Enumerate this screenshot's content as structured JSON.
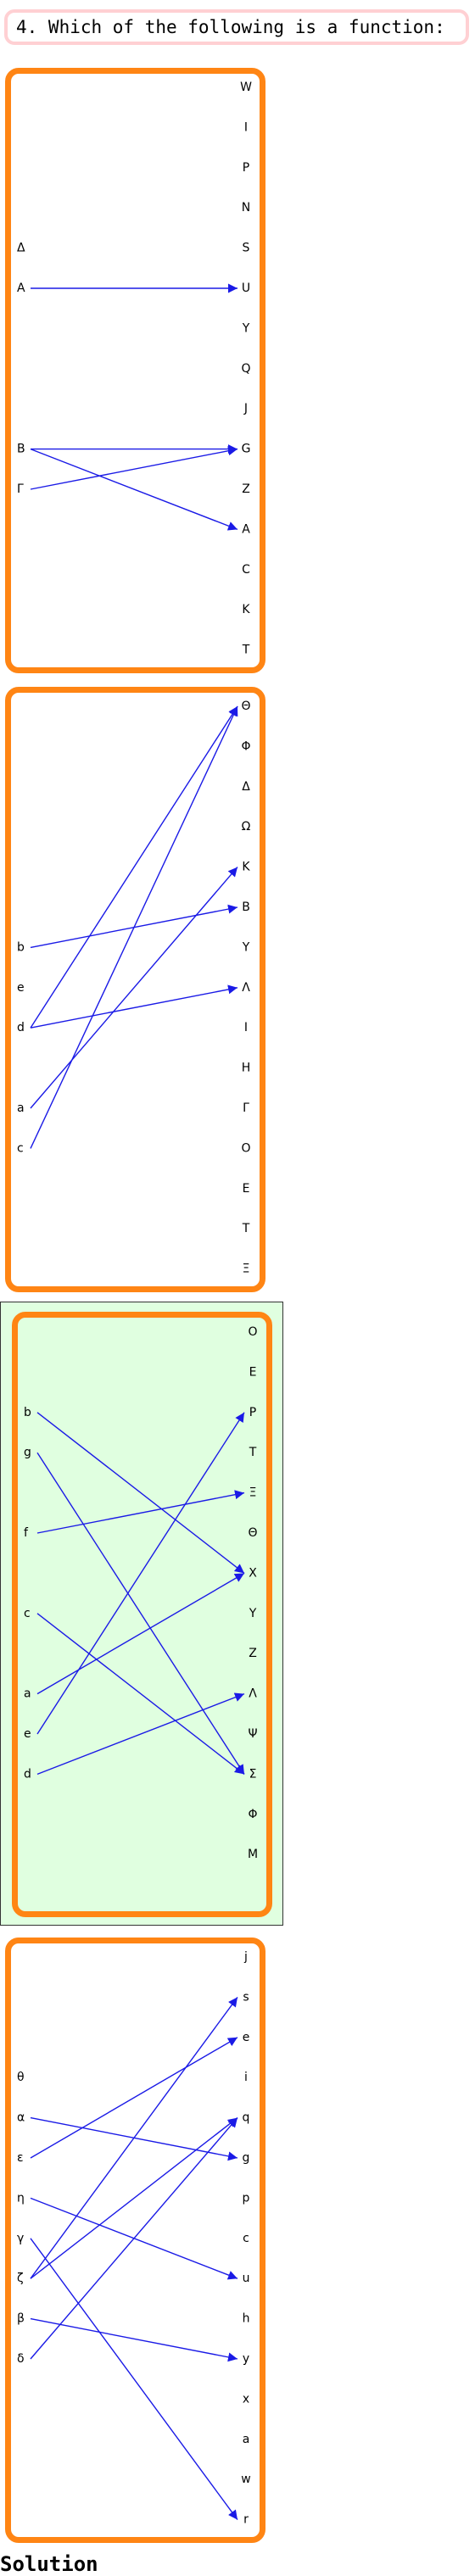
{
  "question": "4. Which of the following is a function:",
  "solution_label": "Solution",
  "colors": {
    "panel_border": "#ff8514",
    "arrow": "#1a1ae6",
    "selected_background": "#e0ffe0",
    "question_border": "#ffd0d3"
  },
  "options": [
    {
      "domain": [
        "Δ",
        "A",
        "B",
        "Γ"
      ],
      "codomain": [
        "W",
        "I",
        "P",
        "N",
        "S",
        "U",
        "Y",
        "Q",
        "J",
        "G",
        "Z",
        "A",
        "C",
        "K",
        "T"
      ],
      "mappings": [
        [
          "A",
          "U"
        ],
        [
          "B",
          "G"
        ],
        [
          "B",
          "A"
        ],
        [
          "Γ",
          "G"
        ]
      ],
      "selected": false
    },
    {
      "domain": [
        "b",
        "e",
        "d",
        "a",
        "c"
      ],
      "codomain": [
        "Θ",
        "Φ",
        "Δ",
        "Ω",
        "K",
        "B",
        "Y",
        "Λ",
        "I",
        "H",
        "Γ",
        "O",
        "E",
        "T",
        "Ξ"
      ],
      "mappings": [
        [
          "b",
          "B"
        ],
        [
          "d",
          "Θ"
        ],
        [
          "d",
          "Λ"
        ],
        [
          "a",
          "K"
        ],
        [
          "c",
          "Θ"
        ]
      ],
      "selected": false
    },
    {
      "domain": [
        "b",
        "g",
        "f",
        "c",
        "a",
        "e",
        "d"
      ],
      "codomain": [
        "O",
        "E",
        "P",
        "T",
        "Ξ",
        "Θ",
        "X",
        "Y",
        "Z",
        "Λ",
        "Ψ",
        "Σ",
        "Φ",
        "M"
      ],
      "mappings": [
        [
          "b",
          "X"
        ],
        [
          "g",
          "Σ"
        ],
        [
          "f",
          "Ξ"
        ],
        [
          "c",
          "Σ"
        ],
        [
          "a",
          "X"
        ],
        [
          "e",
          "P"
        ],
        [
          "d",
          "Λ"
        ]
      ],
      "selected": true
    },
    {
      "domain": [
        "θ",
        "α",
        "ε",
        "η",
        "γ",
        "ζ",
        "β",
        "δ"
      ],
      "codomain": [
        "j",
        "s",
        "e",
        "i",
        "q",
        "g",
        "p",
        "c",
        "u",
        "h",
        "y",
        "x",
        "a",
        "w",
        "r"
      ],
      "mappings": [
        [
          "α",
          "g"
        ],
        [
          "ε",
          "e"
        ],
        [
          "η",
          "u"
        ],
        [
          "γ",
          "r"
        ],
        [
          "ζ",
          "s"
        ],
        [
          "ζ",
          "q"
        ],
        [
          "β",
          "y"
        ],
        [
          "δ",
          "q"
        ]
      ],
      "selected": false
    }
  ]
}
